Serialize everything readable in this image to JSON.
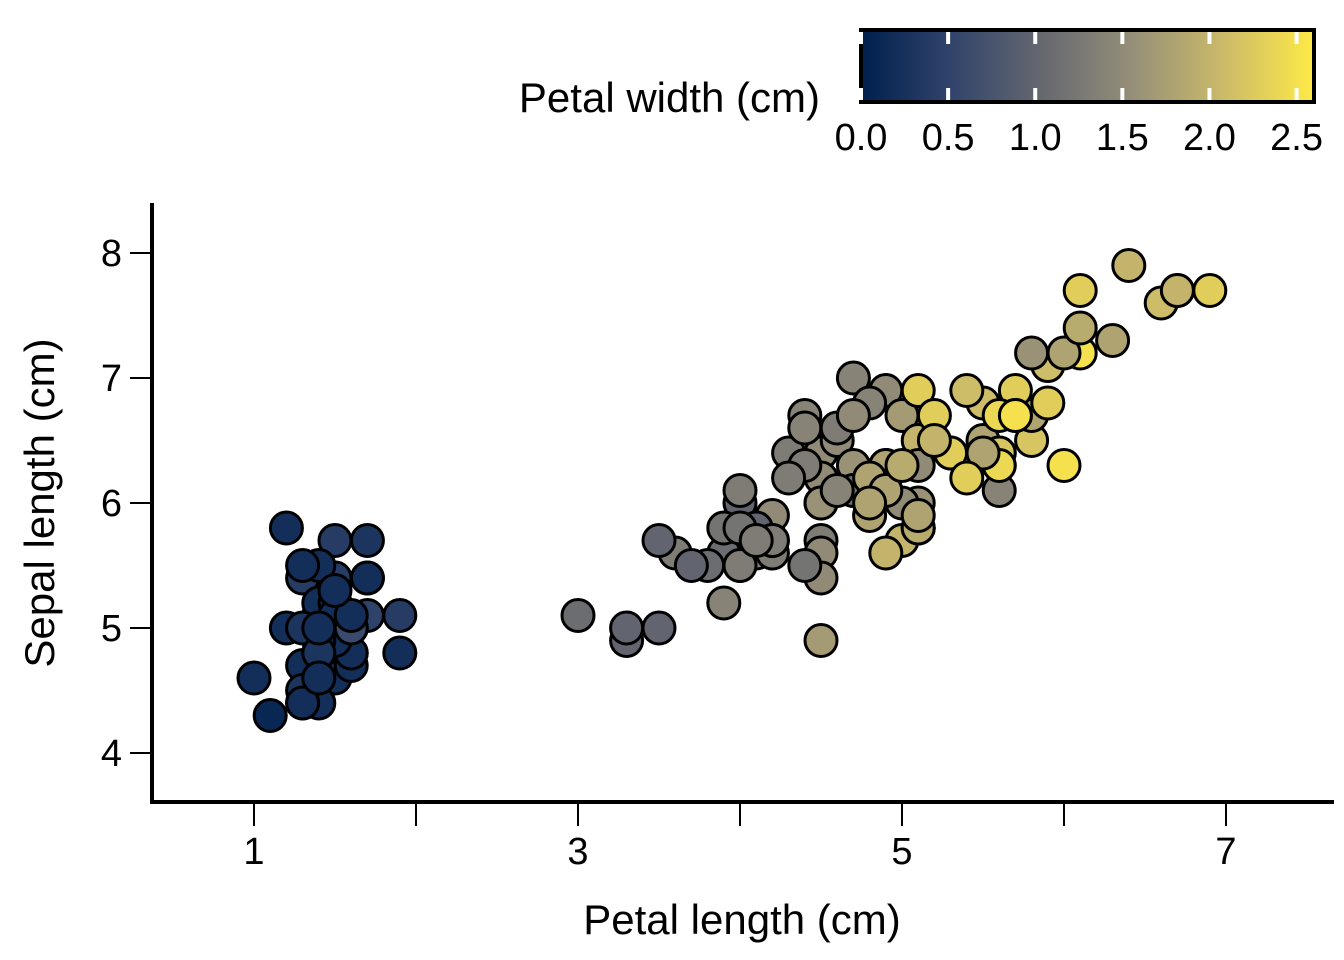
{
  "chart_data": {
    "type": "scatter",
    "xlabel": "Petal length (cm)",
    "ylabel": "Sepal length (cm)",
    "xlim": [
      0.35,
      7.6
    ],
    "ylim": [
      3.6,
      8.4
    ],
    "x_ticks": [
      1,
      2,
      3,
      4,
      5,
      6,
      7
    ],
    "x_tick_labels": [
      "1",
      "",
      "3",
      "",
      "5",
      "",
      "7"
    ],
    "y_ticks": [
      4,
      5,
      6,
      7,
      8
    ],
    "y_tick_labels": [
      "4",
      "5",
      "6",
      "7",
      "8"
    ],
    "color_variable": "Petal width (cm)",
    "colorbar": {
      "title": "Petal width (cm)",
      "range": [
        0.0,
        2.6
      ],
      "ticks": [
        0.0,
        0.5,
        1.0,
        1.5,
        2.0,
        2.5
      ],
      "tick_labels": [
        "0.0",
        "0.5",
        "1.0",
        "1.5",
        "2.0",
        "2.5"
      ],
      "colormap": "cividis",
      "colors": [
        "#00204d",
        "#31446b",
        "#666870",
        "#958f78",
        "#cbba69",
        "#ffea46"
      ]
    },
    "grid": false,
    "points": [
      {
        "x": 1.4,
        "y": 5.1,
        "c": 0.2
      },
      {
        "x": 1.4,
        "y": 4.9,
        "c": 0.2
      },
      {
        "x": 1.3,
        "y": 4.7,
        "c": 0.2
      },
      {
        "x": 1.5,
        "y": 4.6,
        "c": 0.2
      },
      {
        "x": 1.4,
        "y": 5.0,
        "c": 0.2
      },
      {
        "x": 1.7,
        "y": 5.4,
        "c": 0.4
      },
      {
        "x": 1.4,
        "y": 4.6,
        "c": 0.3
      },
      {
        "x": 1.5,
        "y": 5.0,
        "c": 0.2
      },
      {
        "x": 1.4,
        "y": 4.4,
        "c": 0.2
      },
      {
        "x": 1.5,
        "y": 4.9,
        "c": 0.1
      },
      {
        "x": 1.5,
        "y": 5.4,
        "c": 0.2
      },
      {
        "x": 1.6,
        "y": 4.8,
        "c": 0.2
      },
      {
        "x": 1.4,
        "y": 4.8,
        "c": 0.1
      },
      {
        "x": 1.1,
        "y": 4.3,
        "c": 0.1
      },
      {
        "x": 1.2,
        "y": 5.8,
        "c": 0.2
      },
      {
        "x": 1.5,
        "y": 5.7,
        "c": 0.4
      },
      {
        "x": 1.3,
        "y": 5.4,
        "c": 0.4
      },
      {
        "x": 1.4,
        "y": 5.1,
        "c": 0.3
      },
      {
        "x": 1.7,
        "y": 5.7,
        "c": 0.3
      },
      {
        "x": 1.5,
        "y": 5.1,
        "c": 0.3
      },
      {
        "x": 1.7,
        "y": 5.4,
        "c": 0.2
      },
      {
        "x": 1.5,
        "y": 5.1,
        "c": 0.4
      },
      {
        "x": 1.0,
        "y": 4.6,
        "c": 0.2
      },
      {
        "x": 1.7,
        "y": 5.1,
        "c": 0.5
      },
      {
        "x": 1.9,
        "y": 4.8,
        "c": 0.2
      },
      {
        "x": 1.6,
        "y": 5.0,
        "c": 0.2
      },
      {
        "x": 1.6,
        "y": 5.0,
        "c": 0.4
      },
      {
        "x": 1.5,
        "y": 5.2,
        "c": 0.2
      },
      {
        "x": 1.4,
        "y": 5.2,
        "c": 0.2
      },
      {
        "x": 1.6,
        "y": 4.7,
        "c": 0.2
      },
      {
        "x": 1.6,
        "y": 4.8,
        "c": 0.2
      },
      {
        "x": 1.5,
        "y": 5.4,
        "c": 0.4
      },
      {
        "x": 1.5,
        "y": 5.2,
        "c": 0.1
      },
      {
        "x": 1.4,
        "y": 5.5,
        "c": 0.2
      },
      {
        "x": 1.5,
        "y": 4.9,
        "c": 0.2
      },
      {
        "x": 1.2,
        "y": 5.0,
        "c": 0.2
      },
      {
        "x": 1.3,
        "y": 5.5,
        "c": 0.2
      },
      {
        "x": 1.4,
        "y": 4.9,
        "c": 0.1
      },
      {
        "x": 1.3,
        "y": 4.4,
        "c": 0.2
      },
      {
        "x": 1.5,
        "y": 5.1,
        "c": 0.2
      },
      {
        "x": 1.3,
        "y": 5.0,
        "c": 0.3
      },
      {
        "x": 1.3,
        "y": 4.5,
        "c": 0.3
      },
      {
        "x": 1.3,
        "y": 4.4,
        "c": 0.2
      },
      {
        "x": 1.6,
        "y": 5.0,
        "c": 0.6
      },
      {
        "x": 1.9,
        "y": 5.1,
        "c": 0.4
      },
      {
        "x": 1.4,
        "y": 4.8,
        "c": 0.3
      },
      {
        "x": 1.6,
        "y": 5.1,
        "c": 0.2
      },
      {
        "x": 1.4,
        "y": 4.6,
        "c": 0.2
      },
      {
        "x": 1.5,
        "y": 5.3,
        "c": 0.2
      },
      {
        "x": 1.4,
        "y": 5.0,
        "c": 0.2
      },
      {
        "x": 4.7,
        "y": 7.0,
        "c": 1.4
      },
      {
        "x": 4.5,
        "y": 6.4,
        "c": 1.5
      },
      {
        "x": 4.9,
        "y": 6.9,
        "c": 1.5
      },
      {
        "x": 4.0,
        "y": 5.5,
        "c": 1.3
      },
      {
        "x": 4.6,
        "y": 6.5,
        "c": 1.5
      },
      {
        "x": 4.5,
        "y": 5.7,
        "c": 1.3
      },
      {
        "x": 4.7,
        "y": 6.3,
        "c": 1.6
      },
      {
        "x": 3.3,
        "y": 4.9,
        "c": 1.0
      },
      {
        "x": 4.6,
        "y": 6.6,
        "c": 1.3
      },
      {
        "x": 3.9,
        "y": 5.2,
        "c": 1.4
      },
      {
        "x": 3.5,
        "y": 5.0,
        "c": 1.0
      },
      {
        "x": 4.2,
        "y": 5.9,
        "c": 1.5
      },
      {
        "x": 4.0,
        "y": 6.0,
        "c": 1.0
      },
      {
        "x": 4.7,
        "y": 6.1,
        "c": 1.4
      },
      {
        "x": 3.6,
        "y": 5.6,
        "c": 1.3
      },
      {
        "x": 4.4,
        "y": 6.7,
        "c": 1.4
      },
      {
        "x": 4.5,
        "y": 5.6,
        "c": 1.5
      },
      {
        "x": 4.1,
        "y": 5.8,
        "c": 1.0
      },
      {
        "x": 4.5,
        "y": 6.2,
        "c": 1.5
      },
      {
        "x": 3.9,
        "y": 5.6,
        "c": 1.1
      },
      {
        "x": 4.8,
        "y": 5.9,
        "c": 1.8
      },
      {
        "x": 4.0,
        "y": 6.1,
        "c": 1.3
      },
      {
        "x": 4.9,
        "y": 6.3,
        "c": 1.5
      },
      {
        "x": 4.7,
        "y": 6.1,
        "c": 1.2
      },
      {
        "x": 4.3,
        "y": 6.4,
        "c": 1.3
      },
      {
        "x": 4.4,
        "y": 6.6,
        "c": 1.4
      },
      {
        "x": 4.8,
        "y": 6.8,
        "c": 1.4
      },
      {
        "x": 5.0,
        "y": 6.7,
        "c": 1.7
      },
      {
        "x": 4.5,
        "y": 6.0,
        "c": 1.5
      },
      {
        "x": 3.5,
        "y": 5.7,
        "c": 1.0
      },
      {
        "x": 3.8,
        "y": 5.5,
        "c": 1.1
      },
      {
        "x": 3.7,
        "y": 5.5,
        "c": 1.0
      },
      {
        "x": 3.9,
        "y": 5.8,
        "c": 1.2
      },
      {
        "x": 5.1,
        "y": 6.0,
        "c": 1.6
      },
      {
        "x": 4.5,
        "y": 5.4,
        "c": 1.5
      },
      {
        "x": 4.5,
        "y": 6.0,
        "c": 1.6
      },
      {
        "x": 4.7,
        "y": 6.7,
        "c": 1.5
      },
      {
        "x": 4.4,
        "y": 6.3,
        "c": 1.3
      },
      {
        "x": 4.1,
        "y": 5.6,
        "c": 1.3
      },
      {
        "x": 4.0,
        "y": 5.5,
        "c": 1.3
      },
      {
        "x": 4.4,
        "y": 5.5,
        "c": 1.2
      },
      {
        "x": 4.6,
        "y": 6.1,
        "c": 1.4
      },
      {
        "x": 4.0,
        "y": 5.8,
        "c": 1.2
      },
      {
        "x": 3.3,
        "y": 5.0,
        "c": 1.0
      },
      {
        "x": 4.2,
        "y": 5.6,
        "c": 1.3
      },
      {
        "x": 4.2,
        "y": 5.7,
        "c": 1.2
      },
      {
        "x": 4.2,
        "y": 5.7,
        "c": 1.3
      },
      {
        "x": 4.3,
        "y": 6.2,
        "c": 1.3
      },
      {
        "x": 3.0,
        "y": 5.1,
        "c": 1.1
      },
      {
        "x": 4.1,
        "y": 5.7,
        "c": 1.3
      },
      {
        "x": 6.0,
        "y": 6.3,
        "c": 2.5
      },
      {
        "x": 5.1,
        "y": 5.8,
        "c": 1.9
      },
      {
        "x": 5.9,
        "y": 7.1,
        "c": 2.1
      },
      {
        "x": 5.6,
        "y": 6.3,
        "c": 1.8
      },
      {
        "x": 5.8,
        "y": 6.5,
        "c": 2.2
      },
      {
        "x": 6.6,
        "y": 7.6,
        "c": 2.1
      },
      {
        "x": 4.5,
        "y": 4.9,
        "c": 1.7
      },
      {
        "x": 6.3,
        "y": 7.3,
        "c": 1.8
      },
      {
        "x": 5.8,
        "y": 6.7,
        "c": 1.8
      },
      {
        "x": 6.1,
        "y": 7.2,
        "c": 2.5
      },
      {
        "x": 5.1,
        "y": 6.5,
        "c": 2.0
      },
      {
        "x": 5.3,
        "y": 6.4,
        "c": 1.9
      },
      {
        "x": 5.5,
        "y": 6.8,
        "c": 2.1
      },
      {
        "x": 5.0,
        "y": 5.7,
        "c": 2.0
      },
      {
        "x": 5.1,
        "y": 5.8,
        "c": 2.4
      },
      {
        "x": 5.3,
        "y": 6.4,
        "c": 2.3
      },
      {
        "x": 5.5,
        "y": 6.5,
        "c": 1.8
      },
      {
        "x": 6.7,
        "y": 7.7,
        "c": 2.2
      },
      {
        "x": 6.9,
        "y": 7.7,
        "c": 2.3
      },
      {
        "x": 5.0,
        "y": 6.0,
        "c": 1.5
      },
      {
        "x": 5.7,
        "y": 6.9,
        "c": 2.3
      },
      {
        "x": 4.9,
        "y": 5.6,
        "c": 2.0
      },
      {
        "x": 6.7,
        "y": 7.7,
        "c": 2.0
      },
      {
        "x": 4.9,
        "y": 6.3,
        "c": 1.8
      },
      {
        "x": 5.7,
        "y": 6.7,
        "c": 2.1
      },
      {
        "x": 6.0,
        "y": 7.2,
        "c": 1.8
      },
      {
        "x": 4.8,
        "y": 6.2,
        "c": 1.8
      },
      {
        "x": 4.9,
        "y": 6.1,
        "c": 1.8
      },
      {
        "x": 5.6,
        "y": 6.4,
        "c": 2.1
      },
      {
        "x": 5.8,
        "y": 7.2,
        "c": 1.6
      },
      {
        "x": 6.1,
        "y": 7.4,
        "c": 1.9
      },
      {
        "x": 6.4,
        "y": 7.9,
        "c": 2.0
      },
      {
        "x": 5.6,
        "y": 6.4,
        "c": 2.2
      },
      {
        "x": 5.1,
        "y": 6.3,
        "c": 1.5
      },
      {
        "x": 5.6,
        "y": 6.1,
        "c": 1.4
      },
      {
        "x": 6.1,
        "y": 7.7,
        "c": 2.3
      },
      {
        "x": 5.6,
        "y": 6.3,
        "c": 2.4
      },
      {
        "x": 5.5,
        "y": 6.4,
        "c": 1.8
      },
      {
        "x": 4.8,
        "y": 6.0,
        "c": 1.8
      },
      {
        "x": 5.4,
        "y": 6.9,
        "c": 2.1
      },
      {
        "x": 5.6,
        "y": 6.7,
        "c": 2.4
      },
      {
        "x": 5.1,
        "y": 6.9,
        "c": 2.3
      },
      {
        "x": 5.1,
        "y": 5.8,
        "c": 1.9
      },
      {
        "x": 5.9,
        "y": 6.8,
        "c": 2.3
      },
      {
        "x": 5.7,
        "y": 6.7,
        "c": 2.5
      },
      {
        "x": 5.2,
        "y": 6.7,
        "c": 2.3
      },
      {
        "x": 5.0,
        "y": 6.3,
        "c": 1.9
      },
      {
        "x": 5.2,
        "y": 6.5,
        "c": 2.0
      },
      {
        "x": 5.4,
        "y": 6.2,
        "c": 2.3
      },
      {
        "x": 5.1,
        "y": 5.9,
        "c": 1.8
      }
    ]
  }
}
